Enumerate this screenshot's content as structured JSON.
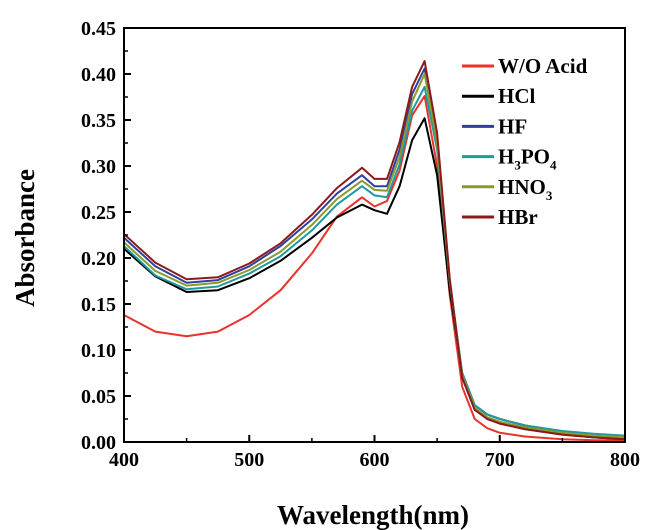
{
  "chart_data": {
    "type": "line",
    "xlabel": "Wavelength(nm)",
    "ylabel": "Absorbance",
    "xlim": [
      400,
      800
    ],
    "ylim": [
      0.0,
      0.45
    ],
    "x_ticks": [
      "400",
      "500",
      "600",
      "700",
      "800"
    ],
    "y_ticks": [
      "0.00",
      "0.05",
      "0.10",
      "0.15",
      "0.20",
      "0.25",
      "0.30",
      "0.35",
      "0.40",
      "0.45"
    ],
    "legend_position": "top-right",
    "legend_labels": [
      "W/O Acid",
      "HCl",
      "HF",
      "H3PO4",
      "HNO3",
      "HBr"
    ],
    "legend_parts": [
      {
        "text": "W/O Acid"
      },
      {
        "text": "HCl"
      },
      {
        "text": "HF"
      },
      {
        "text": "H",
        "sub1": "3",
        "mid": "PO",
        "sub2": "4"
      },
      {
        "text": "HNO",
        "sub1": "3"
      },
      {
        "text": "HBr"
      }
    ],
    "x": [
      400,
      425,
      450,
      475,
      500,
      525,
      550,
      570,
      590,
      600,
      610,
      620,
      630,
      640,
      650,
      660,
      670,
      680,
      690,
      700,
      720,
      750,
      775,
      800
    ],
    "series": [
      {
        "name": "W/O Acid",
        "color": "#e8332a",
        "values": [
          0.138,
          0.12,
          0.115,
          0.12,
          0.138,
          0.165,
          0.205,
          0.245,
          0.266,
          0.256,
          0.262,
          0.295,
          0.355,
          0.376,
          0.3,
          0.16,
          0.06,
          0.025,
          0.015,
          0.01,
          0.006,
          0.003,
          0.002,
          0.002
        ]
      },
      {
        "name": "HCl",
        "color": "#000000",
        "values": [
          0.21,
          0.18,
          0.163,
          0.165,
          0.178,
          0.197,
          0.222,
          0.244,
          0.258,
          0.252,
          0.248,
          0.278,
          0.328,
          0.352,
          0.29,
          0.165,
          0.075,
          0.04,
          0.03,
          0.025,
          0.018,
          0.01,
          0.006,
          0.004
        ]
      },
      {
        "name": "HF",
        "color": "#2f3fa0",
        "values": [
          0.222,
          0.191,
          0.173,
          0.176,
          0.191,
          0.213,
          0.242,
          0.27,
          0.29,
          0.278,
          0.278,
          0.318,
          0.378,
          0.406,
          0.33,
          0.175,
          0.07,
          0.035,
          0.026,
          0.02,
          0.014,
          0.008,
          0.005,
          0.003
        ]
      },
      {
        "name": "H3PO4",
        "color": "#1e9aa0",
        "values": [
          0.213,
          0.181,
          0.166,
          0.169,
          0.183,
          0.202,
          0.23,
          0.258,
          0.278,
          0.268,
          0.266,
          0.302,
          0.36,
          0.386,
          0.318,
          0.175,
          0.075,
          0.04,
          0.03,
          0.025,
          0.018,
          0.012,
          0.009,
          0.007
        ]
      },
      {
        "name": "HNO3",
        "color": "#8a9a2a",
        "values": [
          0.217,
          0.186,
          0.17,
          0.173,
          0.187,
          0.207,
          0.236,
          0.264,
          0.284,
          0.274,
          0.273,
          0.31,
          0.37,
          0.4,
          0.325,
          0.176,
          0.072,
          0.037,
          0.027,
          0.022,
          0.016,
          0.01,
          0.007,
          0.005
        ]
      },
      {
        "name": "HBr",
        "color": "#8b1a1a",
        "values": [
          0.226,
          0.195,
          0.177,
          0.179,
          0.194,
          0.216,
          0.247,
          0.276,
          0.298,
          0.286,
          0.286,
          0.326,
          0.386,
          0.414,
          0.336,
          0.178,
          0.07,
          0.035,
          0.025,
          0.02,
          0.014,
          0.008,
          0.005,
          0.003
        ]
      }
    ]
  }
}
